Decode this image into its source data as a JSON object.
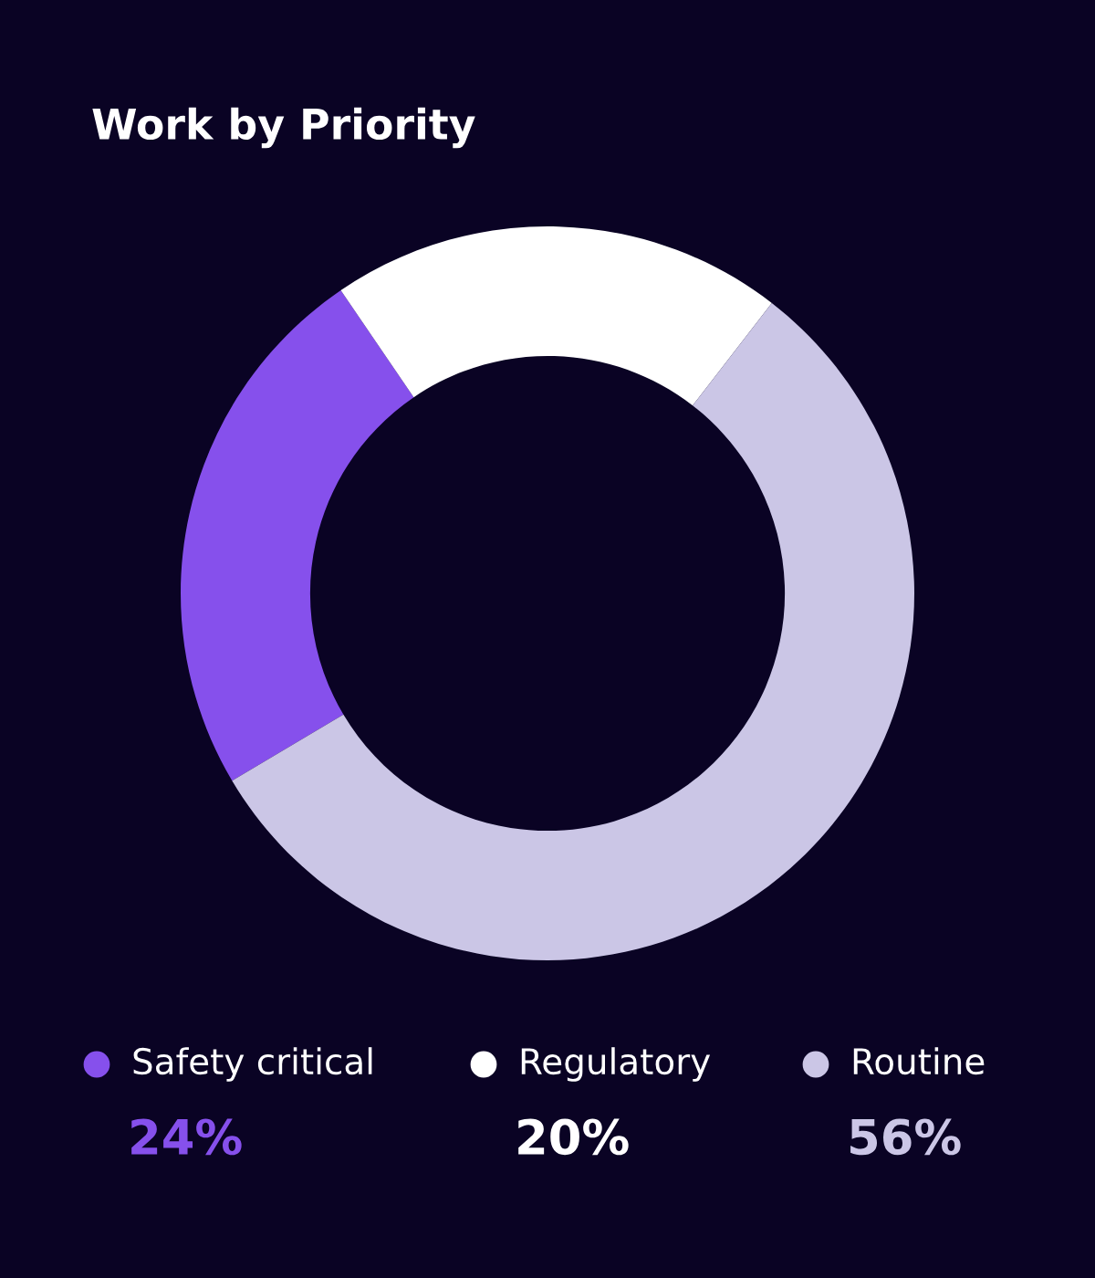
{
  "chart_data": {
    "type": "donut",
    "title": "Work by Priority",
    "categories": [
      "Safety critical",
      "Regulatory",
      "Routine"
    ],
    "values": [
      24,
      20,
      56
    ],
    "colors": [
      "#8650ec",
      "#ffffff",
      "#cbc6e6"
    ],
    "value_labels": [
      "24%",
      "20%",
      "56%"
    ],
    "legend": "bottom"
  }
}
